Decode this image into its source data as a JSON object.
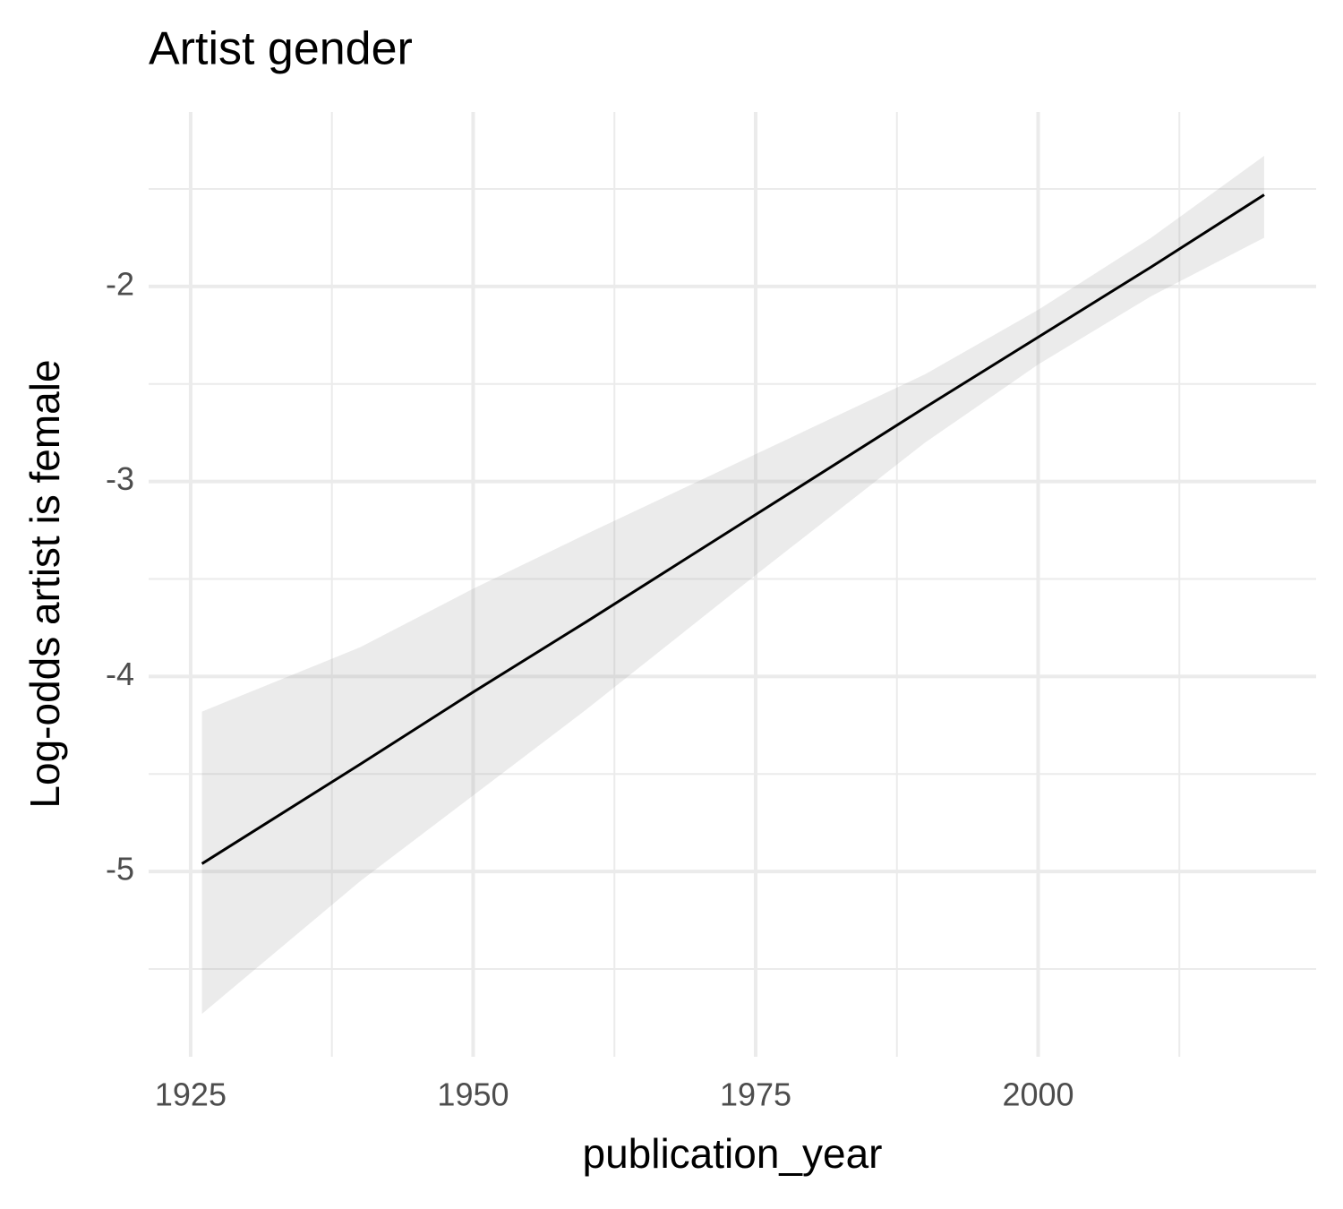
{
  "chart_data": {
    "type": "line",
    "title": "Artist gender",
    "x_label": "publication_year",
    "y_label": "Log-odds artist is female",
    "x": [
      1926,
      1940,
      1950,
      1960,
      1975,
      1990,
      2000,
      2010,
      2020
    ],
    "series": [
      {
        "color": "#000000",
        "band_color": "#999999",
        "values": [
          -4.96,
          -4.45,
          -4.08,
          -3.72,
          -3.17,
          -2.62,
          -2.26,
          -1.9,
          -1.53
        ],
        "upper": [
          -4.18,
          -3.85,
          -3.55,
          -3.27,
          -2.86,
          -2.45,
          -2.12,
          -1.75,
          -1.33
        ],
        "lower": [
          -5.73,
          -5.05,
          -4.61,
          -4.17,
          -3.48,
          -2.8,
          -2.4,
          -2.05,
          -1.75
        ]
      }
    ],
    "xlim": [
      1921.28,
      2024.6
    ],
    "ylim": [
      -5.95,
      -1.105
    ],
    "xticks": [
      1925,
      1950,
      1975,
      2000
    ],
    "yticks": [
      -5,
      -4,
      -3,
      -2
    ],
    "x_minor_ticks": [
      1937.5,
      1962.5,
      1987.5,
      2012.5
    ],
    "y_minor_ticks": [
      -5.5,
      -4.5,
      -3.5,
      -2.5,
      -1.5
    ],
    "grid": true
  }
}
